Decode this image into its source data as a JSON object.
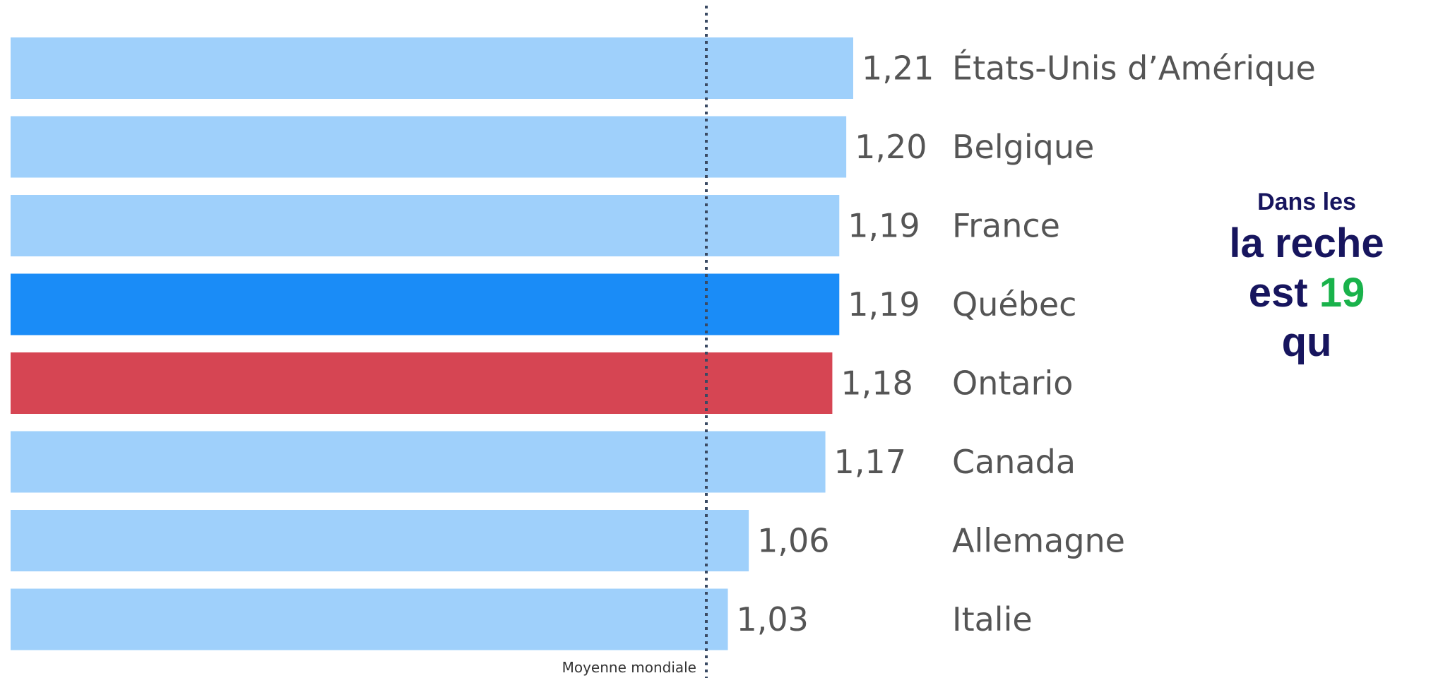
{
  "chart_data": {
    "type": "bar",
    "orientation": "horizontal",
    "categories": [
      "États-Unis d’Amérique",
      "Belgique",
      "France",
      "Québec",
      "Ontario",
      "Canada",
      "Allemagne",
      "Italie"
    ],
    "values": [
      1.21,
      1.2,
      1.19,
      1.19,
      1.18,
      1.17,
      1.06,
      1.03
    ],
    "value_labels": [
      "1,21",
      "1,20",
      "1,19",
      "1,19",
      "1,18",
      "1,17",
      "1,06",
      "1,03"
    ],
    "colors": [
      "#9fd0fb",
      "#9fd0fb",
      "#9fd0fb",
      "#1a8cf7",
      "#d64553",
      "#9fd0fb",
      "#9fd0fb",
      "#9fd0fb"
    ],
    "reference_line": {
      "label": "Moyenne mondiale",
      "value": 1.0,
      "color": "#3a4a63"
    },
    "xlim": [
      0,
      1.21
    ],
    "grid": false,
    "legend": "none"
  },
  "callout": {
    "line1": "Dans les",
    "line2": "la reche",
    "line3_prefix": "est ",
    "line3_highlight": "19",
    "line4": "qu"
  },
  "colors": {
    "callout_text": "#17155e",
    "callout_highlight": "#19b24b"
  }
}
